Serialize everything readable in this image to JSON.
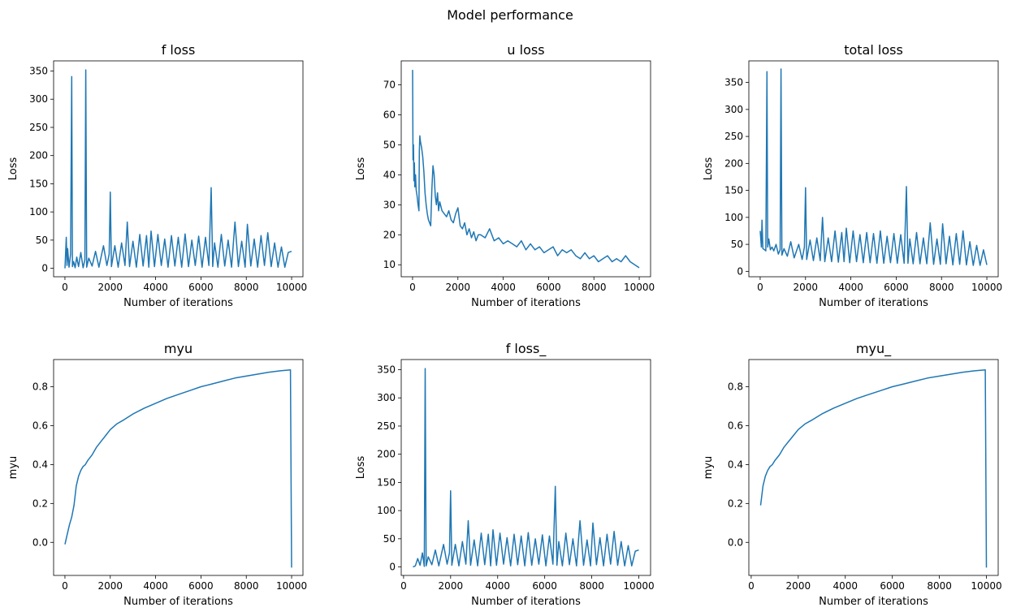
{
  "figure": {
    "suptitle": "Model performance"
  },
  "chart_data": [
    {
      "id": "f-loss",
      "type": "line",
      "title": "f loss",
      "xlabel": "Number of iterations",
      "ylabel": "Loss",
      "xlim": [
        -500,
        10500
      ],
      "ylim": [
        -15,
        368
      ],
      "xticks": [
        0,
        2000,
        4000,
        6000,
        8000,
        10000
      ],
      "yticks": [
        0,
        50,
        100,
        150,
        200,
        250,
        300,
        350
      ],
      "color": "#1f77b4",
      "series": [
        {
          "x": [
            0,
            60,
            90,
            120,
            180,
            250,
            300,
            330,
            380,
            450,
            520,
            600,
            700,
            800,
            880,
            920,
            960,
            1050,
            1200,
            1350,
            1500,
            1700,
            1850,
            1950,
            2000,
            2050,
            2200,
            2350,
            2500,
            2650,
            2750,
            2850,
            3000,
            3150,
            3300,
            3450,
            3600,
            3700,
            3800,
            3950,
            4100,
            4250,
            4400,
            4550,
            4700,
            4850,
            5000,
            5150,
            5300,
            5450,
            5600,
            5750,
            5900,
            6050,
            6200,
            6350,
            6450,
            6520,
            6600,
            6750,
            6900,
            7050,
            7200,
            7350,
            7500,
            7650,
            7800,
            7950,
            8050,
            8200,
            8350,
            8500,
            8650,
            8800,
            8950,
            9100,
            9250,
            9400,
            9550,
            9700,
            9850,
            10000
          ],
          "y": [
            0,
            55,
            5,
            35,
            2,
            25,
            340,
            3,
            12,
            1,
            20,
            3,
            28,
            1,
            15,
            352,
            2,
            18,
            4,
            30,
            2,
            40,
            5,
            25,
            135,
            3,
            40,
            2,
            45,
            5,
            82,
            3,
            48,
            2,
            60,
            4,
            58,
            2,
            66,
            3,
            60,
            5,
            52,
            2,
            58,
            4,
            55,
            2,
            61,
            3,
            50,
            5,
            57,
            2,
            55,
            5,
            143,
            3,
            45,
            2,
            60,
            4,
            50,
            2,
            82,
            3,
            48,
            2,
            78,
            4,
            52,
            2,
            58,
            5,
            63,
            3,
            45,
            2,
            38,
            2,
            28,
            30
          ]
        }
      ]
    },
    {
      "id": "u-loss",
      "type": "line",
      "title": "u loss",
      "xlabel": "Number of iterations",
      "ylabel": "Loss",
      "xlim": [
        -500,
        10500
      ],
      "ylim": [
        6,
        78
      ],
      "xticks": [
        0,
        2000,
        4000,
        6000,
        8000,
        10000
      ],
      "yticks": [
        10,
        20,
        30,
        40,
        50,
        60,
        70
      ],
      "color": "#1f77b4",
      "series": [
        {
          "x": [
            0,
            20,
            40,
            60,
            80,
            100,
            130,
            160,
            200,
            240,
            280,
            300,
            320,
            350,
            400,
            450,
            500,
            550,
            600,
            650,
            700,
            750,
            800,
            850,
            900,
            950,
            1000,
            1050,
            1100,
            1150,
            1200,
            1300,
            1400,
            1500,
            1600,
            1700,
            1800,
            1900,
            2000,
            2100,
            2200,
            2300,
            2400,
            2500,
            2600,
            2700,
            2800,
            2900,
            3000,
            3200,
            3400,
            3600,
            3800,
            4000,
            4200,
            4400,
            4600,
            4800,
            5000,
            5200,
            5400,
            5600,
            5800,
            6000,
            6200,
            6400,
            6600,
            6800,
            7000,
            7200,
            7400,
            7600,
            7800,
            8000,
            8200,
            8400,
            8600,
            8800,
            9000,
            9200,
            9400,
            9600,
            9800,
            10000
          ],
          "y": [
            75,
            45,
            50,
            38,
            44,
            36,
            40,
            35,
            33,
            30,
            28,
            48,
            53,
            51,
            49,
            46,
            41,
            34,
            30,
            27,
            25,
            24,
            23,
            35,
            43,
            40,
            33,
            30,
            34,
            28,
            31,
            28,
            27,
            26,
            28,
            25,
            24,
            27,
            29,
            23,
            22,
            24,
            20,
            22,
            19,
            21,
            18,
            20,
            20,
            19,
            22,
            18,
            19,
            17,
            18,
            17,
            16,
            18,
            15,
            17,
            15,
            16,
            14,
            15,
            16,
            13,
            15,
            14,
            15,
            13,
            12,
            14,
            12,
            13,
            11,
            12,
            13,
            11,
            12,
            11,
            13,
            11,
            10,
            9
          ]
        }
      ]
    },
    {
      "id": "total-loss",
      "type": "line",
      "title": "total loss",
      "xlabel": "Number of iterations",
      "ylabel": "Loss",
      "xlim": [
        -500,
        10500
      ],
      "ylim": [
        -10,
        390
      ],
      "xticks": [
        0,
        2000,
        4000,
        6000,
        8000,
        10000
      ],
      "yticks": [
        0,
        50,
        100,
        150,
        200,
        250,
        300,
        350
      ],
      "color": "#1f77b4",
      "series": [
        {
          "x": [
            0,
            50,
            80,
            120,
            200,
            250,
            300,
            330,
            380,
            450,
            520,
            600,
            700,
            800,
            880,
            920,
            960,
            1050,
            1200,
            1350,
            1500,
            1700,
            1850,
            1950,
            2000,
            2050,
            2200,
            2350,
            2500,
            2650,
            2750,
            2850,
            3000,
            3150,
            3300,
            3450,
            3600,
            3700,
            3800,
            3950,
            4100,
            4250,
            4400,
            4550,
            4700,
            4850,
            5000,
            5150,
            5300,
            5450,
            5600,
            5750,
            5900,
            6050,
            6200,
            6350,
            6450,
            6520,
            6600,
            6750,
            6900,
            7050,
            7200,
            7350,
            7500,
            7650,
            7800,
            7950,
            8050,
            8200,
            8350,
            8500,
            8650,
            8800,
            8950,
            9100,
            9250,
            9400,
            9550,
            9700,
            9850,
            10000
          ],
          "y": [
            75,
            45,
            95,
            42,
            40,
            38,
            370,
            45,
            60,
            40,
            45,
            38,
            50,
            32,
            40,
            375,
            30,
            42,
            28,
            55,
            25,
            50,
            22,
            45,
            155,
            22,
            58,
            20,
            62,
            20,
            100,
            18,
            62,
            18,
            75,
            17,
            72,
            18,
            80,
            16,
            75,
            18,
            68,
            16,
            72,
            16,
            70,
            15,
            75,
            15,
            65,
            16,
            70,
            15,
            68,
            15,
            157,
            15,
            60,
            14,
            72,
            14,
            62,
            14,
            90,
            13,
            60,
            13,
            88,
            14,
            65,
            12,
            70,
            13,
            75,
            12,
            55,
            11,
            48,
            11,
            40,
            12
          ]
        }
      ]
    },
    {
      "id": "myu",
      "type": "line",
      "title": "myu",
      "xlabel": "Number of iterations",
      "ylabel": "myu",
      "xlim": [
        -500,
        10500
      ],
      "ylim": [
        -0.17,
        0.94
      ],
      "xticks": [
        0,
        2000,
        4000,
        6000,
        8000,
        10000
      ],
      "yticks": [
        0.0,
        0.2,
        0.4,
        0.6,
        0.8
      ],
      "color": "#1f77b4",
      "series": [
        {
          "x": [
            0,
            100,
            200,
            300,
            400,
            500,
            600,
            700,
            800,
            900,
            1000,
            1200,
            1400,
            1600,
            1800,
            2000,
            2300,
            2600,
            3000,
            3500,
            4000,
            4500,
            5000,
            5500,
            6000,
            6500,
            7000,
            7500,
            8000,
            8500,
            9000,
            9500,
            9950,
            10000
          ],
          "y": [
            -0.01,
            0.04,
            0.09,
            0.13,
            0.19,
            0.29,
            0.34,
            0.37,
            0.39,
            0.4,
            0.42,
            0.45,
            0.49,
            0.52,
            0.55,
            0.58,
            0.61,
            0.63,
            0.66,
            0.69,
            0.715,
            0.74,
            0.76,
            0.78,
            0.8,
            0.815,
            0.83,
            0.845,
            0.855,
            0.865,
            0.875,
            0.882,
            0.887,
            -0.13
          ]
        }
      ]
    },
    {
      "id": "f-loss-2",
      "type": "line",
      "title": "f loss_",
      "xlabel": "Number of iterations",
      "ylabel": "Loss",
      "xlim": [
        -100,
        10500
      ],
      "ylim": [
        -15,
        368
      ],
      "xticks": [
        0,
        2000,
        4000,
        6000,
        8000,
        10000
      ],
      "yticks": [
        0,
        50,
        100,
        150,
        200,
        250,
        300,
        350
      ],
      "color": "#1f77b4",
      "series": [
        {
          "x": [
            400,
            500,
            600,
            700,
            800,
            880,
            920,
            960,
            1050,
            1200,
            1350,
            1500,
            1700,
            1850,
            1950,
            2000,
            2050,
            2200,
            2350,
            2500,
            2650,
            2750,
            2850,
            3000,
            3150,
            3300,
            3450,
            3600,
            3700,
            3800,
            3950,
            4100,
            4250,
            4400,
            4550,
            4700,
            4850,
            5000,
            5150,
            5300,
            5450,
            5600,
            5750,
            5900,
            6050,
            6200,
            6350,
            6450,
            6520,
            6600,
            6750,
            6900,
            7050,
            7200,
            7350,
            7500,
            7650,
            7800,
            7950,
            8050,
            8200,
            8350,
            8500,
            8650,
            8800,
            8950,
            9100,
            9250,
            9400,
            9550,
            9700,
            9850,
            10000
          ],
          "y": [
            0,
            2,
            15,
            3,
            25,
            1,
            352,
            2,
            18,
            4,
            30,
            2,
            40,
            5,
            25,
            135,
            3,
            40,
            2,
            45,
            5,
            82,
            3,
            48,
            2,
            60,
            4,
            58,
            2,
            66,
            3,
            60,
            5,
            52,
            2,
            58,
            4,
            55,
            2,
            61,
            3,
            50,
            5,
            57,
            2,
            55,
            5,
            143,
            3,
            45,
            2,
            60,
            4,
            50,
            2,
            82,
            3,
            48,
            2,
            78,
            4,
            52,
            2,
            58,
            5,
            63,
            3,
            45,
            2,
            38,
            2,
            28,
            30
          ]
        }
      ]
    },
    {
      "id": "myu-2",
      "type": "line",
      "title": "myu_",
      "xlabel": "Number of iterations",
      "ylabel": "myu",
      "xlim": [
        -100,
        10500
      ],
      "ylim": [
        -0.17,
        0.94
      ],
      "xticks": [
        0,
        2000,
        4000,
        6000,
        8000,
        10000
      ],
      "yticks": [
        0.0,
        0.2,
        0.4,
        0.6,
        0.8
      ],
      "color": "#1f77b4",
      "series": [
        {
          "x": [
            400,
            500,
            600,
            700,
            800,
            900,
            1000,
            1200,
            1400,
            1600,
            1800,
            2000,
            2300,
            2600,
            3000,
            3500,
            4000,
            4500,
            5000,
            5500,
            6000,
            6500,
            7000,
            7500,
            8000,
            8500,
            9000,
            9500,
            9950,
            10000
          ],
          "y": [
            0.19,
            0.29,
            0.34,
            0.37,
            0.39,
            0.4,
            0.42,
            0.45,
            0.49,
            0.52,
            0.55,
            0.58,
            0.61,
            0.63,
            0.66,
            0.69,
            0.715,
            0.74,
            0.76,
            0.78,
            0.8,
            0.815,
            0.83,
            0.845,
            0.855,
            0.865,
            0.875,
            0.882,
            0.887,
            -0.13
          ]
        }
      ]
    }
  ]
}
